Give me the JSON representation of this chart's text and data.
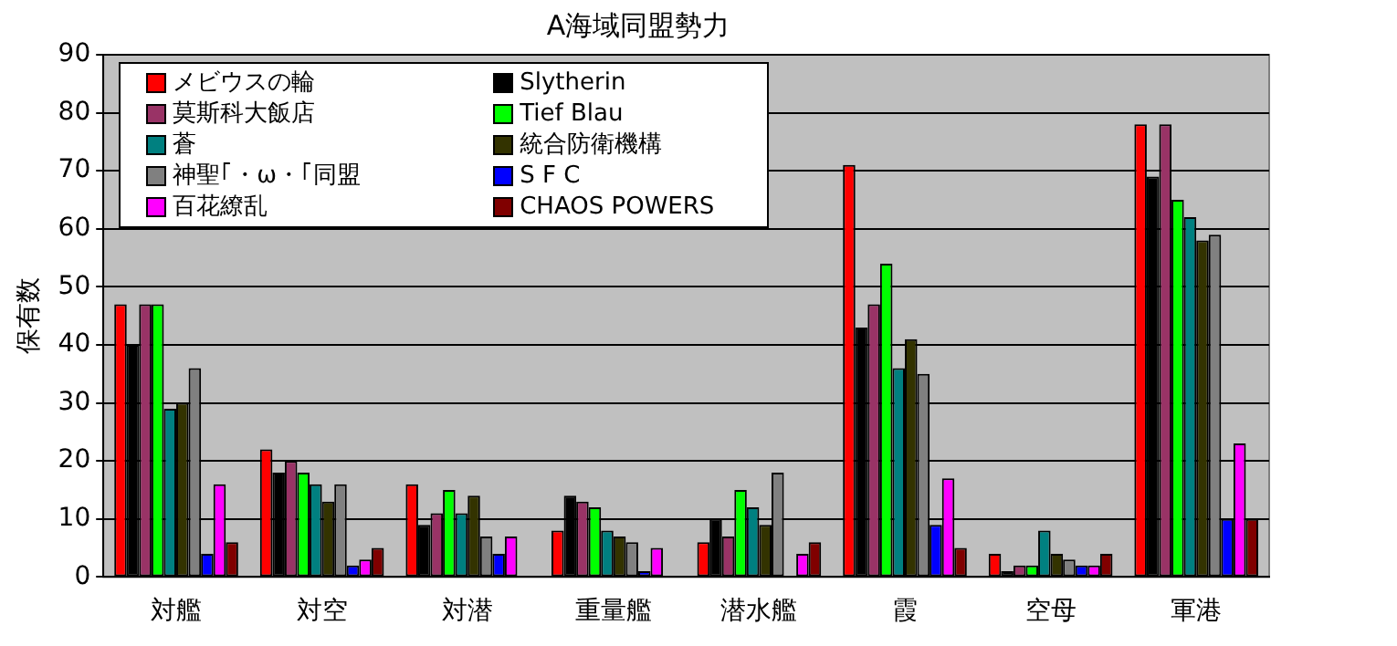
{
  "chart_data": {
    "type": "bar",
    "title": "A海域同盟勢力",
    "ylabel": "保有数",
    "categories": [
      "対艦",
      "対空",
      "対潜",
      "重量艦",
      "潜水艦",
      "霞",
      "空母",
      "軍港"
    ],
    "ylim": [
      0,
      90
    ],
    "yticks": [
      0,
      10,
      20,
      30,
      40,
      50,
      60,
      70,
      80,
      90
    ],
    "grid": "y",
    "legend": "top left",
    "series": [
      {
        "name": "メビウスの輪",
        "color": "#ff0000",
        "values": [
          47,
          22,
          16,
          8,
          6,
          71,
          4,
          78
        ]
      },
      {
        "name": "Slytherin",
        "color": "#000000",
        "values": [
          40,
          18,
          9,
          14,
          10,
          43,
          1,
          69
        ]
      },
      {
        "name": "莫斯科大飯店",
        "color": "#993366",
        "values": [
          47,
          20,
          11,
          13,
          7,
          47,
          2,
          78
        ]
      },
      {
        "name": "Tief Blau",
        "color": "#00ff00",
        "values": [
          47,
          18,
          15,
          12,
          15,
          54,
          2,
          65
        ]
      },
      {
        "name": "蒼",
        "color": "#008080",
        "values": [
          29,
          16,
          11,
          8,
          12,
          36,
          8,
          62
        ]
      },
      {
        "name": "統合防衛機構",
        "color": "#333300",
        "values": [
          30,
          13,
          14,
          7,
          9,
          41,
          4,
          58
        ]
      },
      {
        "name": "神聖｢・ω・｢同盟",
        "color": "#808080",
        "values": [
          36,
          16,
          7,
          6,
          18,
          35,
          3,
          59
        ]
      },
      {
        "name": "S F C",
        "color": "#0000ff",
        "values": [
          4,
          2,
          4,
          1,
          0,
          9,
          2,
          10
        ]
      },
      {
        "name": "百花繚乱",
        "color": "#ff00ff",
        "values": [
          16,
          3,
          7,
          5,
          4,
          17,
          2,
          23
        ]
      },
      {
        "name": "CHAOS POWERS",
        "color": "#800000",
        "values": [
          6,
          5,
          0,
          0,
          6,
          5,
          4,
          10
        ]
      }
    ]
  }
}
